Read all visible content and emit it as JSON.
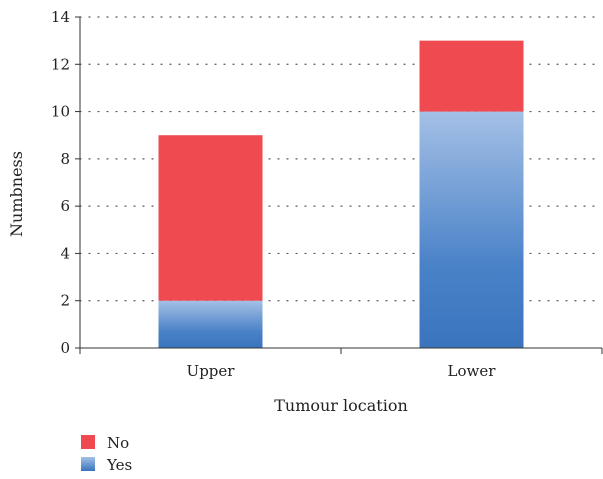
{
  "chart_data": {
    "type": "bar",
    "stacked": true,
    "categories": [
      "Upper",
      "Lower"
    ],
    "series": [
      {
        "name": "Yes",
        "values": [
          2,
          10
        ],
        "color": "#3b78c2"
      },
      {
        "name": "No",
        "values": [
          7,
          3
        ],
        "color": "#ef4a50"
      }
    ],
    "xlabel": "Tumour location",
    "ylabel": "Numbness",
    "ylim": [
      0,
      14
    ],
    "yticks": [
      "0",
      "2",
      "4",
      "6",
      "8",
      "10",
      "12",
      "14"
    ],
    "grid": true,
    "legend_position": "bottom-left",
    "legend_order": [
      "No",
      "Yes"
    ]
  }
}
